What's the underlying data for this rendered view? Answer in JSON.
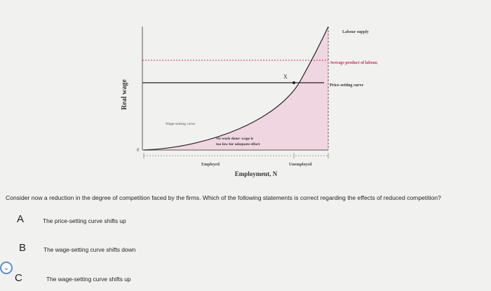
{
  "diagram": {
    "y_axis_label": "Real wage",
    "x_axis_label": "Employment, N",
    "origin_label": "0",
    "labour_supply_label": "Labour supply",
    "avg_product_label": "Average product of labour,",
    "price_setting_label": "Price-setting curve",
    "wage_setting_label": "Wage-setting curve",
    "no_work_label_line1": "No work done: wage is",
    "no_work_label_line2": "too low for adequate effort",
    "point_label": "X",
    "employed_label": "Employed",
    "unemployed_label": "Unemployed",
    "colors": {
      "shade": "#efd6e0",
      "curve": "#222222",
      "axis": "#555555",
      "dashed": "#c03060"
    }
  },
  "question": {
    "text": "Consider now a reduction in the degree of competition faced by the firms. Which of the following statements is correct regarding the effects of reduced competition?"
  },
  "options": [
    {
      "letter": "A",
      "text": "The price-setting curve shifts up"
    },
    {
      "letter": "B",
      "text": "The wage-setting curve shifts down"
    },
    {
      "letter": "C",
      "text": "The wage-setting curve shifts up"
    }
  ],
  "radio_icon": "chevron-down-icon"
}
